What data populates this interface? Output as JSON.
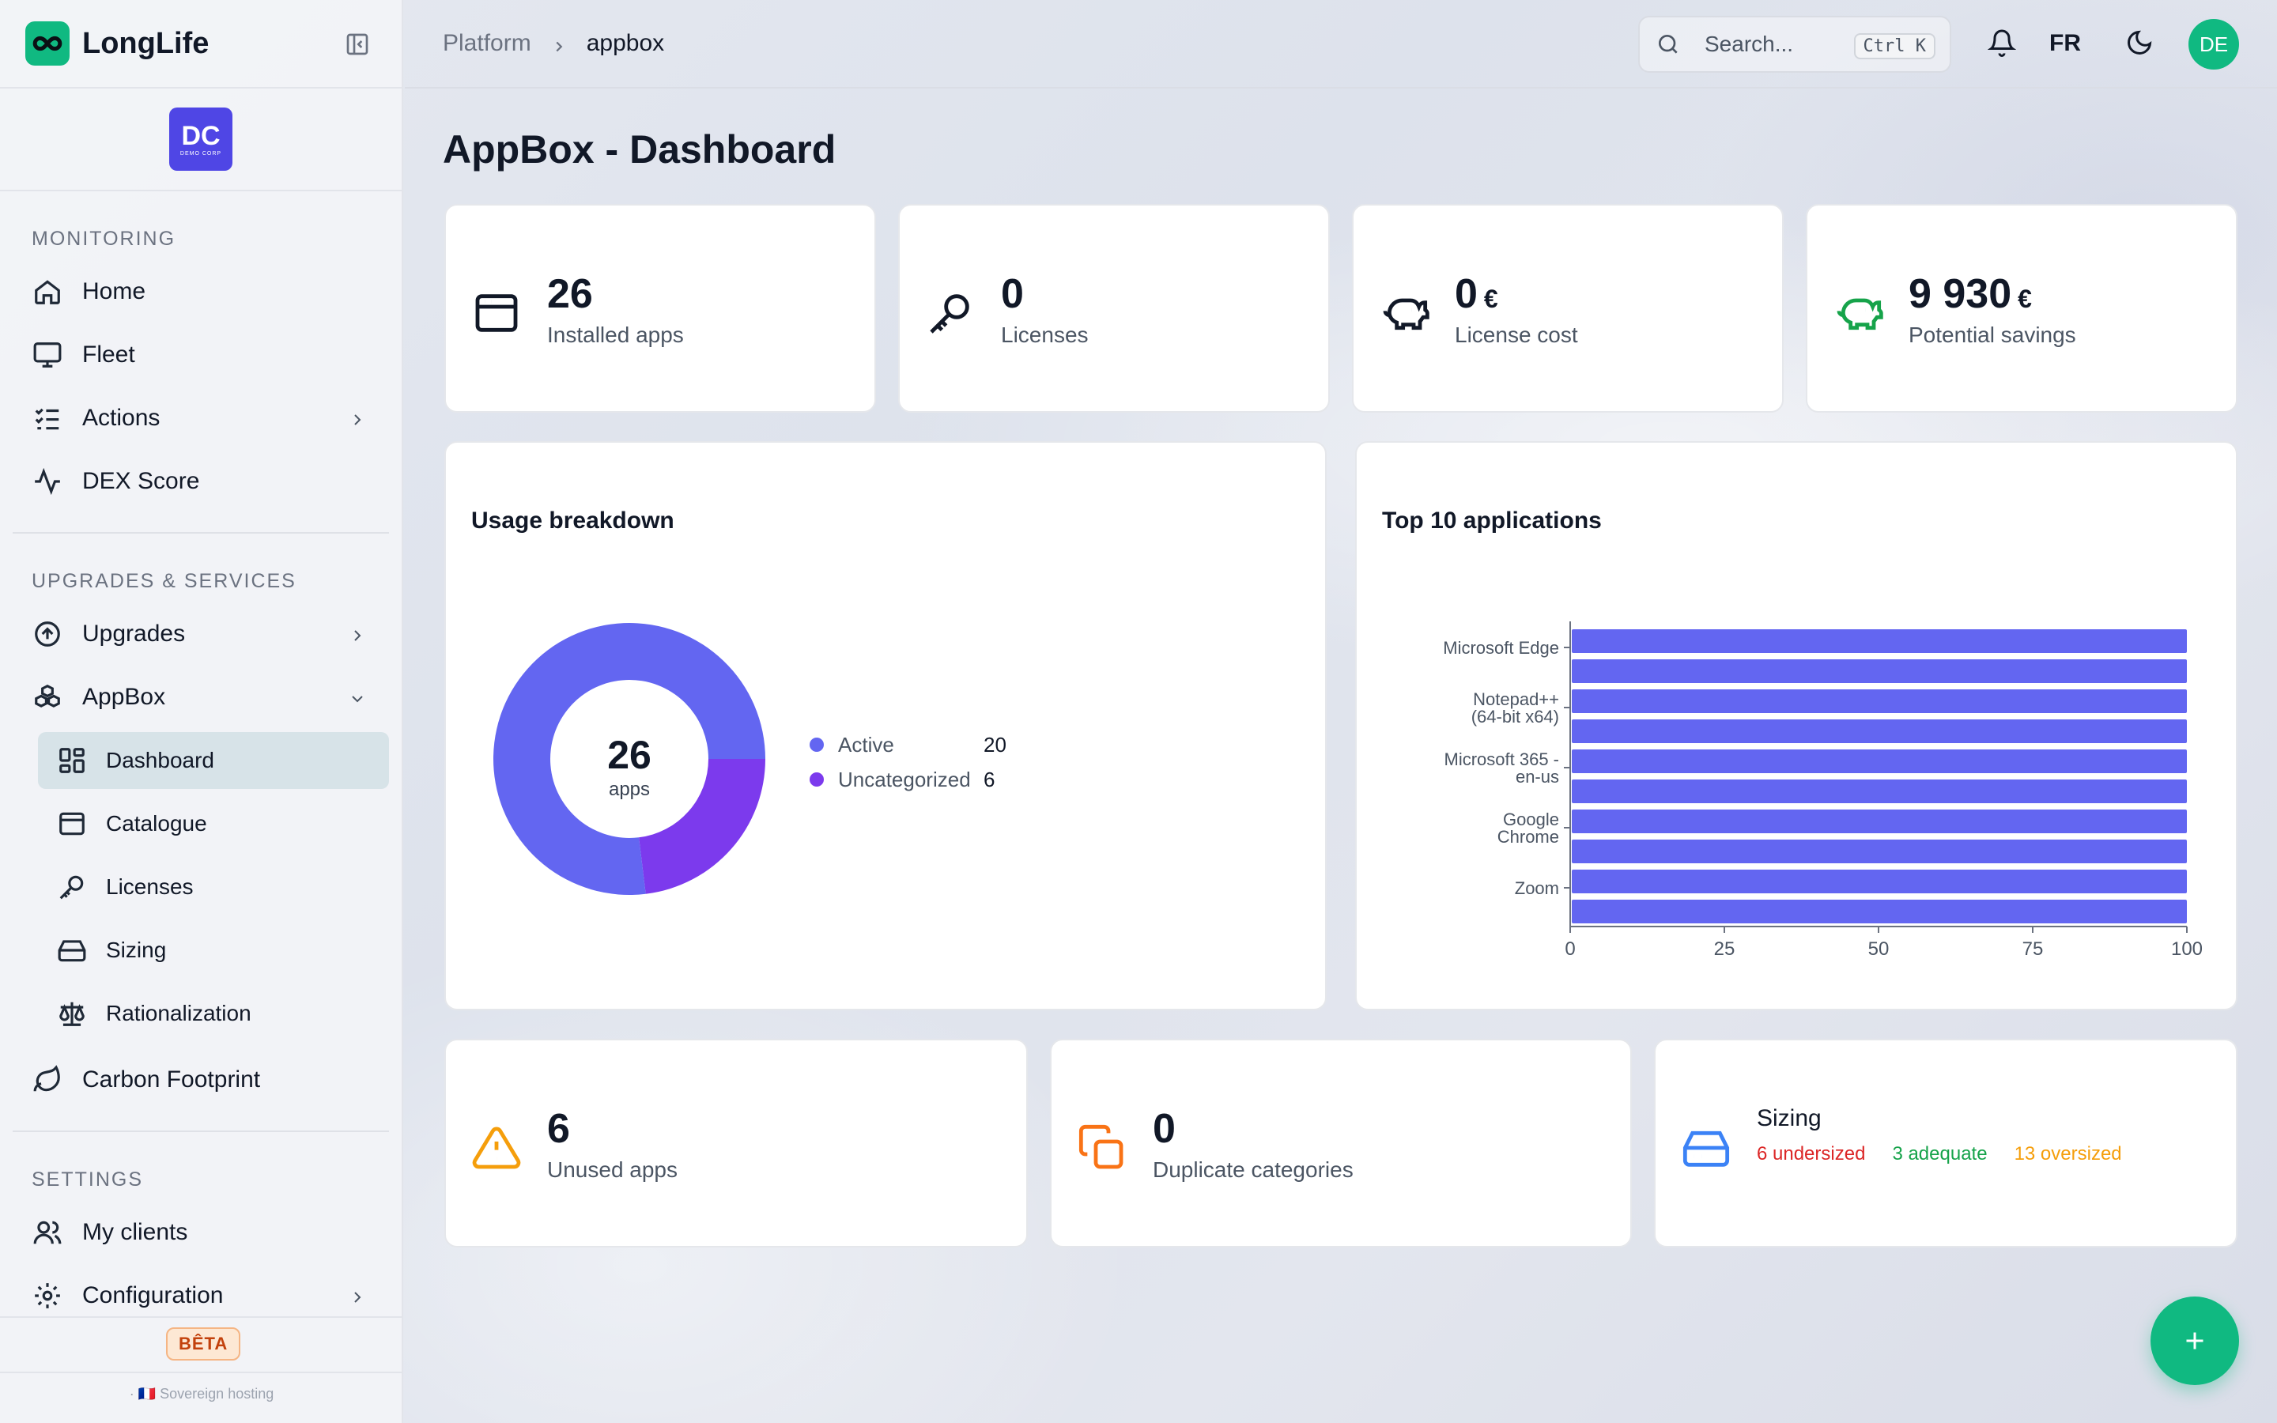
{
  "app": {
    "name": "LongLife"
  },
  "org": {
    "initials": "DC",
    "tagline": "DEMO CORP"
  },
  "sidebar": {
    "sections": [
      {
        "label": "MONITORING"
      },
      {
        "label": "UPGRADES & SERVICES"
      },
      {
        "label": "SETTINGS"
      }
    ],
    "items": {
      "home": "Home",
      "fleet": "Fleet",
      "actions": "Actions",
      "dex": "DEX Score",
      "upgrades": "Upgrades",
      "appbox": "AppBox",
      "dashboard": "Dashboard",
      "catalogue": "Catalogue",
      "licenses": "Licenses",
      "sizing": "Sizing",
      "rationalization": "Rationalization",
      "carbon": "Carbon Footprint",
      "clients": "My clients",
      "configuration": "Configuration"
    },
    "beta": "BÊTA",
    "hosting": "· 🇫🇷 Sovereign hosting"
  },
  "topbar": {
    "breadcrumb": [
      "Platform",
      "appbox"
    ],
    "search_placeholder": "Search...",
    "shortcut": "Ctrl K",
    "lang": "FR",
    "avatar": "DE"
  },
  "page": {
    "title": "AppBox - Dashboard"
  },
  "stats": [
    {
      "value": "26",
      "unit": "",
      "label": "Installed apps",
      "icon": "browser-window-icon"
    },
    {
      "value": "0",
      "unit": "",
      "label": "Licenses",
      "icon": "key-icon"
    },
    {
      "value": "0",
      "unit": "€",
      "label": "License cost",
      "icon": "piggy-bank-icon"
    },
    {
      "value": "9 930",
      "unit": "€",
      "label": "Potential savings",
      "icon": "piggy-bank-icon"
    }
  ],
  "usage": {
    "title": "Usage breakdown",
    "center_value": "26",
    "center_label": "apps",
    "legend": [
      {
        "name": "Active",
        "value": "20",
        "color": "#6366f1"
      },
      {
        "name": "Uncategorized",
        "value": "6",
        "color": "#7c3aed"
      }
    ]
  },
  "top10": {
    "title": "Top 10 applications"
  },
  "bottom": [
    {
      "value": "6",
      "label": "Unused apps",
      "icon": "warning-icon",
      "color": "#f59e0b"
    },
    {
      "value": "0",
      "label": "Duplicate categories",
      "icon": "duplicate-icon",
      "color": "#f97316"
    }
  ],
  "sizing_card": {
    "title": "Sizing",
    "undersized": "6 undersized",
    "adequate": "3 adequate",
    "oversized": "13 oversized",
    "colors": {
      "undersized": "#dc2626",
      "adequate": "#16a34a",
      "oversized": "#f59e0b"
    }
  },
  "chart_data": [
    {
      "type": "pie",
      "title": "Usage breakdown",
      "categories": [
        "Active",
        "Uncategorized"
      ],
      "values": [
        20,
        6
      ]
    },
    {
      "type": "bar",
      "orientation": "horizontal",
      "title": "Top 10 applications",
      "categories": [
        "Microsoft Edge",
        "",
        "Notepad++ (64-bit x64)",
        "",
        "Microsoft 365 - en-us",
        "",
        "Google Chrome",
        "",
        "Zoom",
        ""
      ],
      "values": [
        100,
        100,
        100,
        100,
        100,
        100,
        100,
        100,
        100,
        100
      ],
      "xlim": [
        0,
        100
      ],
      "xticks": [
        0,
        25,
        50,
        75,
        100
      ],
      "color": "#6366f1"
    }
  ]
}
